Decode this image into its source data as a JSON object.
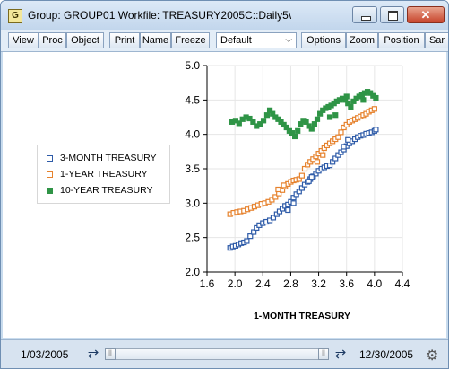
{
  "window": {
    "app_icon_letter": "G",
    "title": "Group: GROUP01   Workfile: TREASURY2005C::Daily5\\"
  },
  "toolbar": {
    "view": "View",
    "proc": "Proc",
    "object": "Object",
    "print": "Print",
    "name": "Name",
    "freeze": "Freeze",
    "default_select": "Default",
    "options": "Options",
    "zoom": "Zoom",
    "position": "Position",
    "sample": "Sar"
  },
  "statusbar": {
    "start_date": "1/03/2005",
    "end_date": "12/30/2005",
    "slider_start": 0.0,
    "slider_end": 1.0
  },
  "colors": {
    "series1": "#2e5ba8",
    "series2": "#e6822d",
    "series3": "#2f9446",
    "window_border": "#6f8fb3"
  },
  "icons": [
    "app-icon",
    "minimize-icon",
    "maximize-icon",
    "close-icon",
    "chevron-down-icon",
    "swap-arrows-icon",
    "gear-icon"
  ],
  "chart_data": {
    "type": "scatter",
    "xlabel": "1-MONTH TREASURY",
    "ylabel": "",
    "xlim": [
      1.6,
      4.4
    ],
    "ylim": [
      2.0,
      5.0
    ],
    "x_ticks": [
      "1.6",
      "2.0",
      "2.4",
      "2.8",
      "3.2",
      "3.6",
      "4.0",
      "4.4"
    ],
    "y_ticks": [
      "2.0",
      "2.5",
      "3.0",
      "3.5",
      "4.0",
      "4.5",
      "5.0"
    ],
    "grid": true,
    "legend_position": "left",
    "series": [
      {
        "name": "3-MONTH TREASURY",
        "color": "#2e5ba8",
        "marker": "hollow-square",
        "points": [
          [
            1.93,
            2.35
          ],
          [
            1.97,
            2.37
          ],
          [
            2.01,
            2.38
          ],
          [
            2.05,
            2.4
          ],
          [
            2.09,
            2.42
          ],
          [
            2.13,
            2.43
          ],
          [
            2.17,
            2.45
          ],
          [
            2.22,
            2.52
          ],
          [
            2.27,
            2.58
          ],
          [
            2.31,
            2.64
          ],
          [
            2.35,
            2.68
          ],
          [
            2.4,
            2.71
          ],
          [
            2.45,
            2.73
          ],
          [
            2.5,
            2.75
          ],
          [
            2.55,
            2.79
          ],
          [
            2.6,
            2.84
          ],
          [
            2.64,
            2.88
          ],
          [
            2.68,
            2.92
          ],
          [
            2.72,
            2.96
          ],
          [
            2.76,
            2.98
          ],
          [
            2.8,
            3.02
          ],
          [
            2.84,
            3.08
          ],
          [
            2.88,
            3.13
          ],
          [
            2.92,
            3.17
          ],
          [
            2.96,
            3.22
          ],
          [
            3.0,
            3.27
          ],
          [
            3.04,
            3.31
          ],
          [
            3.08,
            3.35
          ],
          [
            3.12,
            3.39
          ],
          [
            3.16,
            3.43
          ],
          [
            3.2,
            3.47
          ],
          [
            3.24,
            3.5
          ],
          [
            3.28,
            3.52
          ],
          [
            3.32,
            3.54
          ],
          [
            3.36,
            3.55
          ],
          [
            3.4,
            3.6
          ],
          [
            3.44,
            3.65
          ],
          [
            3.48,
            3.7
          ],
          [
            3.52,
            3.74
          ],
          [
            3.56,
            3.78
          ],
          [
            3.6,
            3.83
          ],
          [
            3.64,
            3.87
          ],
          [
            3.68,
            3.9
          ],
          [
            3.72,
            3.93
          ],
          [
            3.76,
            3.96
          ],
          [
            3.8,
            3.98
          ],
          [
            3.84,
            3.99
          ],
          [
            3.88,
            4.01
          ],
          [
            3.92,
            4.02
          ],
          [
            3.96,
            4.03
          ],
          [
            4.0,
            4.05
          ],
          [
            4.02,
            4.07
          ],
          [
            3.56,
            3.82
          ],
          [
            3.62,
            3.92
          ],
          [
            2.76,
            2.9
          ],
          [
            2.84,
            3.0
          ],
          [
            3.06,
            3.32
          ],
          [
            3.1,
            3.38
          ]
        ]
      },
      {
        "name": "1-YEAR TREASURY",
        "color": "#e6822d",
        "marker": "hollow-square",
        "points": [
          [
            1.93,
            2.84
          ],
          [
            1.98,
            2.86
          ],
          [
            2.03,
            2.87
          ],
          [
            2.08,
            2.88
          ],
          [
            2.13,
            2.89
          ],
          [
            2.18,
            2.91
          ],
          [
            2.23,
            2.93
          ],
          [
            2.28,
            2.95
          ],
          [
            2.33,
            2.97
          ],
          [
            2.38,
            2.99
          ],
          [
            2.43,
            3.0
          ],
          [
            2.48,
            3.02
          ],
          [
            2.53,
            3.05
          ],
          [
            2.58,
            3.09
          ],
          [
            2.63,
            3.14
          ],
          [
            2.68,
            3.19
          ],
          [
            2.72,
            3.24
          ],
          [
            2.76,
            3.28
          ],
          [
            2.8,
            3.31
          ],
          [
            2.84,
            3.33
          ],
          [
            2.88,
            3.34
          ],
          [
            2.92,
            3.35
          ],
          [
            2.96,
            3.4
          ],
          [
            3.0,
            3.5
          ],
          [
            3.04,
            3.56
          ],
          [
            3.08,
            3.6
          ],
          [
            3.12,
            3.64
          ],
          [
            3.16,
            3.68
          ],
          [
            3.2,
            3.72
          ],
          [
            3.24,
            3.76
          ],
          [
            3.28,
            3.8
          ],
          [
            3.32,
            3.84
          ],
          [
            3.36,
            3.87
          ],
          [
            3.4,
            3.9
          ],
          [
            3.44,
            3.93
          ],
          [
            3.48,
            3.96
          ],
          [
            3.52,
            4.03
          ],
          [
            3.56,
            4.1
          ],
          [
            3.6,
            4.14
          ],
          [
            3.64,
            4.18
          ],
          [
            3.68,
            4.2
          ],
          [
            3.72,
            4.22
          ],
          [
            3.76,
            4.24
          ],
          [
            3.8,
            4.26
          ],
          [
            3.84,
            4.28
          ],
          [
            3.88,
            4.3
          ],
          [
            3.92,
            4.33
          ],
          [
            3.96,
            4.35
          ],
          [
            4.0,
            4.37
          ],
          [
            2.62,
            3.2
          ],
          [
            2.7,
            3.26
          ],
          [
            3.18,
            3.6
          ],
          [
            3.26,
            3.7
          ]
        ]
      },
      {
        "name": "10-YEAR TREASURY",
        "color": "#2f9446",
        "marker": "filled-square",
        "points": [
          [
            1.96,
            4.18
          ],
          [
            2.01,
            4.2
          ],
          [
            2.06,
            4.16
          ],
          [
            2.11,
            4.22
          ],
          [
            2.16,
            4.25
          ],
          [
            2.21,
            4.23
          ],
          [
            2.26,
            4.18
          ],
          [
            2.31,
            4.12
          ],
          [
            2.36,
            4.15
          ],
          [
            2.41,
            4.2
          ],
          [
            2.46,
            4.28
          ],
          [
            2.5,
            4.35
          ],
          [
            2.54,
            4.3
          ],
          [
            2.58,
            4.25
          ],
          [
            2.62,
            4.22
          ],
          [
            2.66,
            4.18
          ],
          [
            2.7,
            4.14
          ],
          [
            2.74,
            4.1
          ],
          [
            2.78,
            4.05
          ],
          [
            2.82,
            4.02
          ],
          [
            2.86,
            3.97
          ],
          [
            2.9,
            4.05
          ],
          [
            2.94,
            4.15
          ],
          [
            2.98,
            4.2
          ],
          [
            3.02,
            4.18
          ],
          [
            3.06,
            4.12
          ],
          [
            3.1,
            4.08
          ],
          [
            3.14,
            4.15
          ],
          [
            3.18,
            4.22
          ],
          [
            3.22,
            4.3
          ],
          [
            3.26,
            4.35
          ],
          [
            3.3,
            4.38
          ],
          [
            3.34,
            4.4
          ],
          [
            3.38,
            4.42
          ],
          [
            3.42,
            4.45
          ],
          [
            3.46,
            4.48
          ],
          [
            3.5,
            4.5
          ],
          [
            3.54,
            4.52
          ],
          [
            3.58,
            4.5
          ],
          [
            3.62,
            4.45
          ],
          [
            3.66,
            4.4
          ],
          [
            3.7,
            4.48
          ],
          [
            3.74,
            4.52
          ],
          [
            3.78,
            4.55
          ],
          [
            3.82,
            4.57
          ],
          [
            3.86,
            4.6
          ],
          [
            3.9,
            4.62
          ],
          [
            3.94,
            4.6
          ],
          [
            3.98,
            4.56
          ],
          [
            4.02,
            4.53
          ],
          [
            3.44,
            4.28
          ],
          [
            3.36,
            4.25
          ],
          [
            3.6,
            4.55
          ],
          [
            3.84,
            4.5
          ]
        ]
      }
    ]
  }
}
